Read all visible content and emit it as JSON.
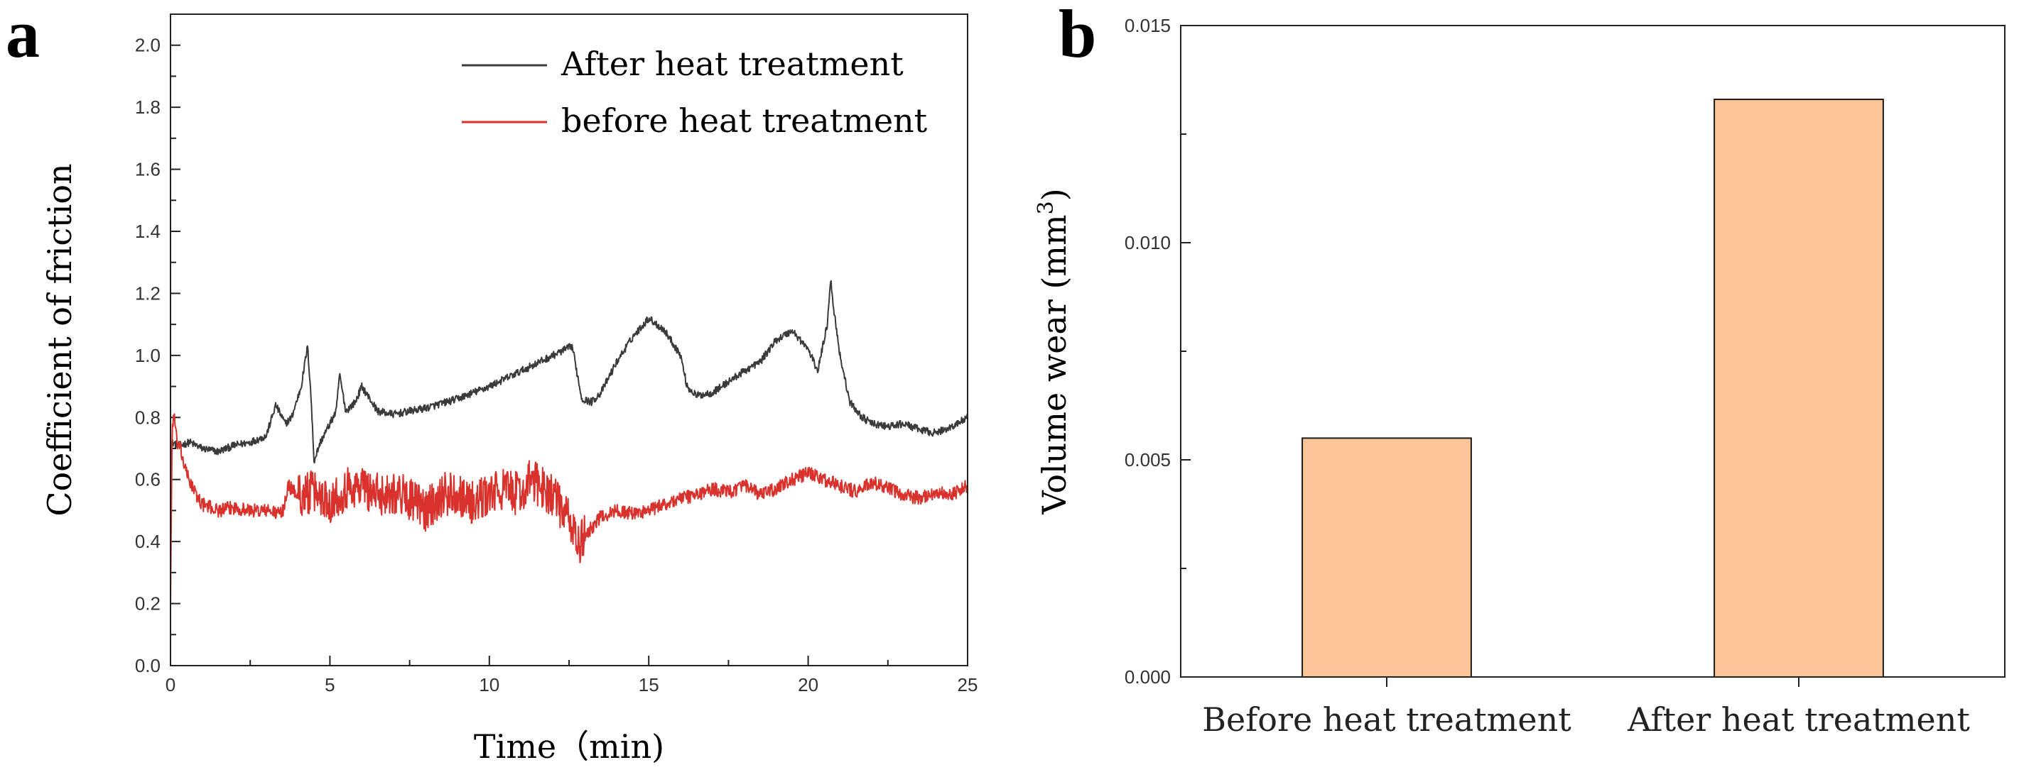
{
  "chart_data": [
    {
      "panel": "a",
      "type": "line",
      "xlabel": "Time（min)",
      "ylabel": "Coefficient of friction",
      "xlim": [
        0,
        25
      ],
      "ylim": [
        0,
        2.1
      ],
      "xticks": [
        0,
        5,
        10,
        15,
        20,
        25
      ],
      "xtick_labels": [
        "0",
        "5",
        "10",
        "15",
        "20",
        "25"
      ],
      "yticks": [
        0.0,
        0.2,
        0.4,
        0.6,
        0.8,
        1.0,
        1.2,
        1.4,
        1.6,
        1.8,
        2.0
      ],
      "ytick_labels": [
        "0.0",
        "0.2",
        "0.4",
        "0.6",
        "0.8",
        "1.0",
        "1.2",
        "1.4",
        "1.6",
        "1.8",
        "2.0"
      ],
      "legend_position": "top-right",
      "series": [
        {
          "name": "After heat treatment",
          "color": "#3a3a3a",
          "noise": 0.012,
          "x": [
            0,
            0.3,
            0.6,
            1,
            1.5,
            2,
            2.5,
            3,
            3.3,
            3.6,
            3.8,
            4.1,
            4.3,
            4.4,
            4.5,
            4.7,
            5,
            5.2,
            5.3,
            5.5,
            5.8,
            6,
            6.5,
            7,
            8,
            9,
            10,
            11,
            12,
            12.6,
            12.9,
            13.2,
            13.5,
            14,
            14.5,
            15,
            15.5,
            16,
            16.2,
            16.5,
            17,
            18,
            18.5,
            19,
            19.5,
            20,
            20.3,
            20.6,
            20.7,
            20.8,
            21,
            21.3,
            21.7,
            22,
            22.5,
            23,
            23.5,
            24,
            24.5,
            25
          ],
          "y": [
            0.72,
            0.71,
            0.72,
            0.7,
            0.69,
            0.71,
            0.72,
            0.74,
            0.84,
            0.78,
            0.8,
            0.9,
            1.03,
            0.88,
            0.66,
            0.72,
            0.78,
            0.82,
            0.94,
            0.82,
            0.85,
            0.9,
            0.82,
            0.81,
            0.83,
            0.86,
            0.9,
            0.95,
            1.0,
            1.03,
            0.86,
            0.85,
            0.88,
            0.98,
            1.06,
            1.12,
            1.08,
            1.0,
            0.9,
            0.87,
            0.88,
            0.95,
            0.98,
            1.05,
            1.08,
            1.02,
            0.95,
            1.1,
            1.25,
            1.15,
            1.0,
            0.85,
            0.8,
            0.78,
            0.77,
            0.78,
            0.76,
            0.75,
            0.77,
            0.8
          ]
        },
        {
          "name": "before heat treatment",
          "color": "#d9312b",
          "noise": 0.022,
          "x": [
            0,
            0.05,
            0.1,
            0.2,
            0.3,
            0.5,
            0.8,
            1,
            1.5,
            2,
            2.5,
            3,
            3.5,
            3.7,
            4,
            4.5,
            5,
            5.5,
            6,
            6.5,
            7,
            7.5,
            8,
            8.5,
            9,
            9.5,
            10,
            10.5,
            11,
            11.3,
            11.6,
            12,
            12.3,
            12.6,
            12.8,
            13,
            13.5,
            14,
            14.5,
            15,
            15.5,
            16,
            16.5,
            17,
            17.5,
            18,
            18.5,
            19,
            19.5,
            20,
            20.5,
            21,
            21.5,
            22,
            22.5,
            23,
            23.5,
            24,
            24.5,
            25
          ],
          "y": [
            0.2,
            0.75,
            0.82,
            0.72,
            0.7,
            0.62,
            0.55,
            0.52,
            0.5,
            0.51,
            0.5,
            0.5,
            0.49,
            0.58,
            0.55,
            0.56,
            0.53,
            0.57,
            0.58,
            0.55,
            0.56,
            0.54,
            0.5,
            0.55,
            0.56,
            0.52,
            0.55,
            0.57,
            0.55,
            0.6,
            0.58,
            0.55,
            0.5,
            0.45,
            0.38,
            0.42,
            0.48,
            0.5,
            0.49,
            0.5,
            0.52,
            0.54,
            0.55,
            0.57,
            0.56,
            0.58,
            0.55,
            0.57,
            0.6,
            0.62,
            0.6,
            0.58,
            0.56,
            0.59,
            0.57,
            0.55,
            0.54,
            0.56,
            0.55,
            0.58
          ]
        }
      ]
    },
    {
      "panel": "b",
      "type": "bar",
      "ylabel": "Volume wear (mm",
      "ylabel_sup": "3",
      "ylabel_close": ")",
      "ylim": [
        0,
        0.015
      ],
      "yticks": [
        0.0,
        0.005,
        0.01,
        0.015
      ],
      "ytick_labels": [
        "0.000",
        "0.005",
        "0.010",
        "0.015"
      ],
      "categories": [
        "Before heat treatment",
        "After heat treatment"
      ],
      "values": [
        0.0055,
        0.0133
      ],
      "bar_color": "#fbc597"
    }
  ],
  "panel_labels": {
    "a": "a",
    "b": "b"
  }
}
